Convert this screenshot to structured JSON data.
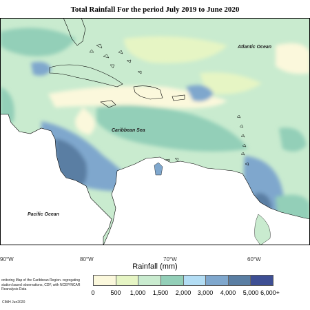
{
  "title": "Total Rainfall For the period July 2019 to June 2020",
  "map": {
    "labels": {
      "atlantic": "Atlantic Ocean",
      "caribbean": "Caribbean Sea",
      "pacific": "Pacific Ocean"
    },
    "longitudes": [
      "90°W",
      "80°W",
      "70°W",
      "60°W"
    ]
  },
  "legend": {
    "title": "Rainfall (mm)",
    "ticks": [
      "0",
      "500",
      "1,000",
      "1,500",
      "2,000",
      "3,000",
      "4,000",
      "5,000",
      "6,000+"
    ],
    "colors": [
      "#fbf8dc",
      "#e6f5c4",
      "#c9ebcf",
      "#93cfb8",
      "#b3ddf4",
      "#7fa7cd",
      "#5a7ea3",
      "#3e4f94"
    ]
  },
  "notes": {
    "description": "onitoring Map of the Caribbean Region. regrogating station based observations, CDF, with NCEP/NCAR Reanalysis Data",
    "credit": "CIMH Jun2020"
  }
}
